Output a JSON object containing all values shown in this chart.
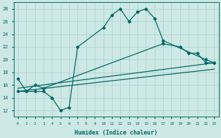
{
  "xlabel": "Humidex (Indice chaleur)",
  "xlim": [
    -0.5,
    23.5
  ],
  "ylim": [
    11,
    29
  ],
  "yticks": [
    12,
    14,
    16,
    18,
    20,
    22,
    24,
    26,
    28
  ],
  "xticks": [
    0,
    1,
    2,
    3,
    4,
    5,
    6,
    7,
    8,
    9,
    10,
    11,
    12,
    13,
    14,
    15,
    16,
    17,
    18,
    19,
    20,
    21,
    22,
    23
  ],
  "bg_color": "#cde8e5",
  "grid_color": "#add4d0",
  "line_color": "#006666",
  "series1_x": [
    0,
    1,
    2,
    3,
    4,
    5,
    6,
    7,
    10,
    11,
    12,
    13,
    14,
    15,
    16,
    17,
    22,
    23
  ],
  "series1_y": [
    17,
    15,
    15,
    15,
    14,
    12,
    12.5,
    22,
    25,
    27,
    28,
    26,
    27.5,
    28,
    26.5,
    23,
    20,
    19.5
  ],
  "series2_x": [
    0,
    1,
    2,
    3,
    17,
    19,
    20,
    21,
    22,
    23
  ],
  "series2_y": [
    15,
    15,
    16,
    15.5,
    22.5,
    22,
    21,
    21,
    19.5,
    19.5
  ],
  "series3_x": [
    0,
    23
  ],
  "series3_y": [
    15.5,
    19.5
  ],
  "series4_x": [
    0,
    23
  ],
  "series4_y": [
    15,
    18.5
  ]
}
